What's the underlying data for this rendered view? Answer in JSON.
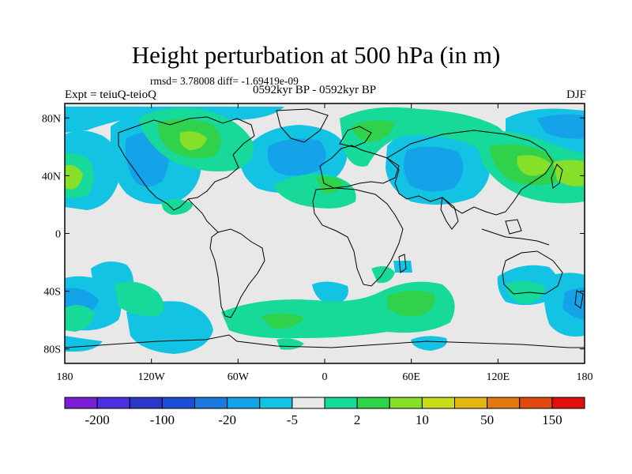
{
  "title": "Height perturbation at 500 hPa (in m)",
  "stats": "rmsd= 3.78008 diff= -1.69419e-09",
  "left_label": "Expt = teiuQ-teioQ",
  "center_label": "0592kyr BP - 0592kyr BP",
  "right_label": "DJF",
  "lat_ticks": [
    {
      "label": "80N",
      "lat": 80
    },
    {
      "label": "40N",
      "lat": 40
    },
    {
      "label": "0",
      "lat": 0
    },
    {
      "label": "40S",
      "lat": -40
    },
    {
      "label": "80S",
      "lat": -80
    }
  ],
  "lon_ticks": [
    {
      "label": "180",
      "lon": -180
    },
    {
      "label": "120W",
      "lon": -120
    },
    {
      "label": "60W",
      "lon": -60
    },
    {
      "label": "0",
      "lon": 0
    },
    {
      "label": "60E",
      "lon": 60
    },
    {
      "label": "120E",
      "lon": 120
    },
    {
      "label": "180",
      "lon": 180
    }
  ],
  "colorbar": {
    "colors": [
      "#7a1fd6",
      "#4b2fe0",
      "#2a37c8",
      "#1c4fd8",
      "#1a7ae0",
      "#14a3e8",
      "#13c3e3",
      "#e8e8e8",
      "#17d99a",
      "#2fd24a",
      "#86e02a",
      "#c8dc1a",
      "#e3b812",
      "#e07a10",
      "#e04a10",
      "#e01010"
    ],
    "labels": [
      {
        "text": "-200",
        "boundary": 1
      },
      {
        "text": "-100",
        "boundary": 3
      },
      {
        "text": "-20",
        "boundary": 5
      },
      {
        "text": "-5",
        "boundary": 7
      },
      {
        "text": "2",
        "boundary": 9
      },
      {
        "text": "10",
        "boundary": 11
      },
      {
        "text": "50",
        "boundary": 13
      },
      {
        "text": "150",
        "boundary": 15
      }
    ]
  },
  "colors": {
    "background_field": "#e8e8e8",
    "cyan": "#13c3e3",
    "light_blue": "#14a3e8",
    "blue": "#1a7ae0",
    "green": "#17d99a",
    "bright_green": "#2fd24a",
    "yellow_green": "#86e02a",
    "coast": "#000000"
  }
}
